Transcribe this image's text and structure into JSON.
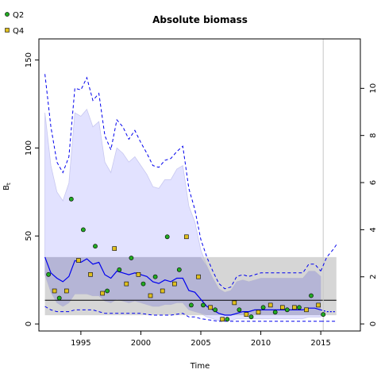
{
  "chart_data": {
    "type": "line",
    "title": "Absolute biomass",
    "xlabel": "Time",
    "ylabel": "B",
    "ylabel_sub": "t",
    "xlim": [
      1991.5,
      2018.3
    ],
    "ylim": [
      -4,
      162
    ],
    "y2lim": [
      -0.3,
      12.1
    ],
    "xticks": [
      1995,
      2000,
      2005,
      2010,
      2015
    ],
    "yticks": [
      0,
      50,
      100,
      150
    ],
    "y2ticks": [
      0,
      2,
      4,
      6,
      8,
      10
    ],
    "reference_year": 2015.2,
    "reference_band": {
      "lower": 5,
      "upper": 38,
      "line": 13.5,
      "x_end": 2016.3
    },
    "legend": [
      {
        "label": "Q2",
        "marker": "circle",
        "color": "#22aa22"
      },
      {
        "label": "Q4",
        "marker": "square",
        "color": "#e0c020"
      }
    ],
    "series": [
      {
        "kind": "biomass",
        "x": [
          1992,
          1992.5,
          1993,
          1993.5,
          1994,
          1994.5,
          1995,
          1995.5,
          1996,
          1996.5,
          1997,
          1997.5,
          1998,
          1998.5,
          1999,
          1999.5,
          2000,
          2000.5,
          2001,
          2001.5,
          2002,
          2002.5,
          2003,
          2003.5,
          2004,
          2004.5,
          2005,
          2005.5,
          2006,
          2006.5,
          2007,
          2007.5,
          2008,
          2008.5,
          2009,
          2009.5,
          2010,
          2010.5,
          2011,
          2011.5,
          2012,
          2012.5,
          2013,
          2013.5,
          2014,
          2014.5,
          2015
        ],
        "median": [
          38,
          29,
          26,
          24,
          27,
          36,
          35,
          37,
          34,
          35,
          28,
          26,
          30,
          29,
          28,
          29,
          28,
          27,
          24,
          23,
          25,
          24,
          26,
          26,
          19,
          18,
          14,
          10,
          8,
          6,
          5,
          5,
          6,
          7,
          7,
          8,
          8,
          8,
          8,
          8,
          8,
          8,
          8,
          8,
          9,
          9,
          8
        ],
        "lower": [
          10,
          8,
          7,
          7,
          7,
          8,
          8,
          8,
          8,
          7,
          6,
          6,
          6,
          6,
          6,
          6,
          6,
          5.5,
          5,
          5,
          5,
          5,
          5.5,
          6,
          4,
          4,
          3,
          2.5,
          2,
          1.5,
          1.5,
          1.5,
          1.5,
          1.5,
          1.5,
          1.5,
          1.5,
          1.5,
          1.5,
          1.5,
          1.5,
          1.5,
          1.5,
          1.5,
          1.5,
          1.5,
          1.5
        ],
        "upper": [
          142,
          112,
          92,
          86,
          95,
          134,
          133,
          140,
          127,
          131,
          107,
          99,
          116,
          112,
          105,
          110,
          103,
          97,
          90,
          89,
          93,
          94,
          98,
          101,
          77,
          65,
          48,
          38,
          30,
          23,
          20,
          21,
          27,
          28,
          27,
          28,
          29,
          29,
          29,
          29,
          29,
          29,
          29,
          29,
          34,
          34,
          30
        ],
        "ci_lower": [
          28,
          18,
          12,
          10,
          12,
          17,
          17,
          17,
          16,
          16,
          13,
          12,
          14,
          13,
          12,
          13,
          12,
          11,
          10,
          10,
          11,
          11,
          12,
          12,
          8,
          7,
          6,
          4,
          3,
          2,
          2,
          2,
          3,
          3,
          3,
          3,
          3,
          3,
          3,
          3,
          3,
          3,
          3,
          3,
          4,
          4,
          4
        ],
        "ci_upper": [
          120,
          90,
          75,
          70,
          80,
          120,
          118,
          122,
          112,
          115,
          92,
          86,
          100,
          97,
          92,
          95,
          90,
          85,
          78,
          77,
          82,
          82,
          88,
          90,
          67,
          58,
          42,
          33,
          26,
          20,
          18,
          19,
          24,
          25,
          24,
          25,
          26,
          26,
          26,
          26,
          26,
          26,
          26,
          26,
          30,
          30,
          27
        ]
      },
      {
        "kind": "forecast",
        "x": [
          2015,
          2015.5,
          2016,
          2016.3
        ],
        "median": [
          8,
          7,
          7,
          7
        ],
        "lower": [
          1.5,
          1.5,
          1.5,
          1.5
        ],
        "upper": [
          30,
          38,
          42,
          45
        ]
      },
      {
        "name": "Q2",
        "kind": "points",
        "marker": "circle",
        "color": "#22aa22",
        "x": [
          1992.3,
          1993.2,
          1994.2,
          1995.2,
          1996.2,
          1997.2,
          1998.2,
          1999.2,
          2000.2,
          2001.2,
          2002.2,
          2003.2,
          2004.2,
          2005.2,
          2006.2,
          2007.2,
          2008.2,
          2009.2,
          2010.2,
          2011.2,
          2012.2,
          2013.2,
          2014.2,
          2015.2
        ],
        "y": [
          2.1,
          1.1,
          5.3,
          4.0,
          3.3,
          1.4,
          2.3,
          2.8,
          1.7,
          2.0,
          3.7,
          2.3,
          0.8,
          0.8,
          0.6,
          0.2,
          0.6,
          0.3,
          0.7,
          0.5,
          0.6,
          0.7,
          1.2,
          0.4
        ]
      },
      {
        "name": "Q4",
        "kind": "points",
        "marker": "square",
        "color": "#e0c020",
        "x": [
          1992.8,
          1993.8,
          1994.8,
          1995.8,
          1996.8,
          1997.8,
          1998.8,
          1999.8,
          2000.8,
          2001.8,
          2002.8,
          2003.8,
          2004.8,
          2005.8,
          2006.8,
          2007.8,
          2008.8,
          2009.8,
          2010.8,
          2011.8,
          2012.8,
          2013.8,
          2014.8
        ],
        "y": [
          1.4,
          1.4,
          2.7,
          2.1,
          1.3,
          3.2,
          1.7,
          2.1,
          1.2,
          1.4,
          1.7,
          3.7,
          2.0,
          0.7,
          0.2,
          0.9,
          0.4,
          0.5,
          0.8,
          0.7,
          0.7,
          0.6,
          0.8
        ]
      }
    ]
  }
}
